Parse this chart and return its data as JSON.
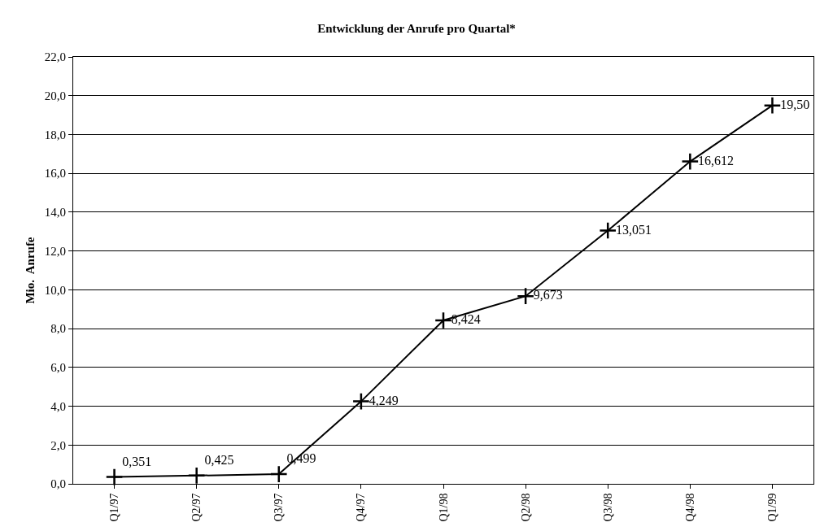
{
  "chart_data": {
    "type": "line",
    "title": "Entwicklung der Anrufe pro Quartal*",
    "ylabel": "Mio.  Anrufe",
    "categories": [
      "Q1/97",
      "Q2/97",
      "Q3/97",
      "Q4/97",
      "Q1/98",
      "Q2/98",
      "Q3/98",
      "Q4/98",
      "Q1/99"
    ],
    "series": [
      {
        "color": "#000000",
        "values": [
          0.351,
          0.425,
          0.499,
          4.249,
          8.424,
          9.673,
          13.051,
          16.612,
          19.5
        ],
        "value_labels": [
          "0,351",
          "0,425",
          "0,499",
          "4,249",
          "8,424",
          "9,673",
          "13,051",
          "16,612",
          "19,50"
        ]
      }
    ],
    "ylim": [
      0,
      22
    ],
    "yticks": [
      {
        "value": 0,
        "label": "0,0"
      },
      {
        "value": 2,
        "label": "2,0"
      },
      {
        "value": 4,
        "label": "4,0"
      },
      {
        "value": 6,
        "label": "6,0"
      },
      {
        "value": 8,
        "label": "8,0"
      },
      {
        "value": 10,
        "label": "10,0"
      },
      {
        "value": 12,
        "label": "12,0"
      },
      {
        "value": 14,
        "label": "14,0"
      },
      {
        "value": 16,
        "label": "16,0"
      },
      {
        "value": 18,
        "label": "18,0"
      },
      {
        "value": 20,
        "label": "20,0"
      },
      {
        "value": 22,
        "label": "22,0"
      }
    ],
    "grid": "y",
    "legend": false,
    "marker": "cross",
    "line_style": "solid"
  }
}
